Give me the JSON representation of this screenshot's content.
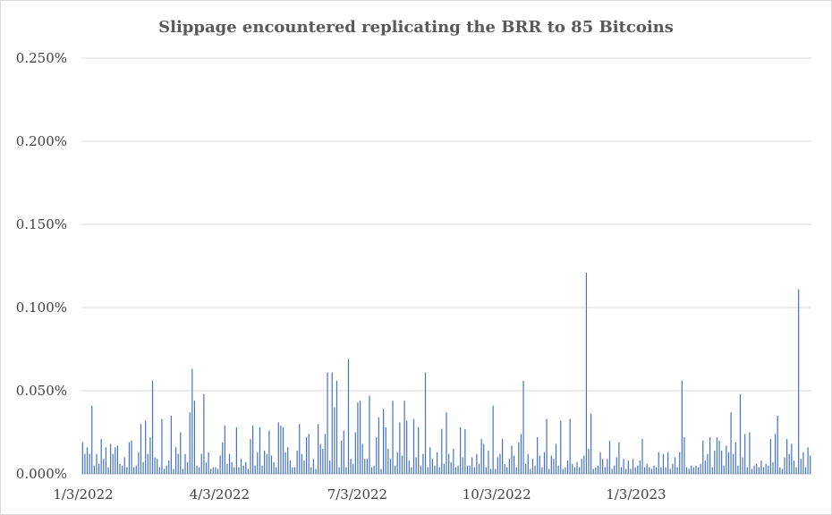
{
  "chart_data": {
    "type": "bar",
    "title": "Slippage encountered replicating the BRR to 85 Bitcoins",
    "xlabel": "",
    "ylabel": "",
    "ylim": [
      0,
      0.25
    ],
    "y_ticks": [
      "0.000%",
      "0.050%",
      "0.100%",
      "0.150%",
      "0.200%",
      "0.250%"
    ],
    "x_ticks": [
      "1/3/2022",
      "4/3/2022",
      "7/3/2022",
      "10/3/2022",
      "1/3/2023"
    ],
    "x_range": [
      "1/3/2022",
      "4/30/2023"
    ],
    "grid": true,
    "legend": "none",
    "color": "#4472c4",
    "series": [
      {
        "values": [
          0.019,
          0.012,
          0.016,
          0.012,
          0.041,
          0.005,
          0.012,
          0.006,
          0.021,
          0.009,
          0.016,
          0.004,
          0.018,
          0.012,
          0.016,
          0.017,
          0.006,
          0.005,
          0.01,
          0.004,
          0.019,
          0.02,
          0.004,
          0.005,
          0.013,
          0.03,
          0.007,
          0.032,
          0.012,
          0.022,
          0.056,
          0.01,
          0.009,
          0.004,
          0.033,
          0.003,
          0.005,
          0.008,
          0.035,
          0.003,
          0.016,
          0.012,
          0.025,
          0.003,
          0.012,
          0.007,
          0.037,
          0.063,
          0.044,
          0.005,
          0.004,
          0.012,
          0.048,
          0.007,
          0.013,
          0.003,
          0.004,
          0.004,
          0.003,
          0.011,
          0.019,
          0.029,
          0.006,
          0.012,
          0.007,
          0.004,
          0.028,
          0.004,
          0.009,
          0.005,
          0.007,
          0.003,
          0.021,
          0.029,
          0.005,
          0.013,
          0.028,
          0.005,
          0.014,
          0.012,
          0.026,
          0.011,
          0.007,
          0.004,
          0.031,
          0.029,
          0.028,
          0.013,
          0.016,
          0.008,
          0.004,
          0.004,
          0.014,
          0.03,
          0.012,
          0.008,
          0.022,
          0.024,
          0.004,
          0.009,
          0.003,
          0.03,
          0.018,
          0.015,
          0.024,
          0.061,
          0.008,
          0.061,
          0.04,
          0.056,
          0.004,
          0.02,
          0.026,
          0.004,
          0.069,
          0.009,
          0.006,
          0.025,
          0.043,
          0.044,
          0.018,
          0.009,
          0.009,
          0.047,
          0.004,
          0.005,
          0.022,
          0.034,
          0.003,
          0.039,
          0.028,
          0.015,
          0.009,
          0.044,
          0.005,
          0.013,
          0.031,
          0.011,
          0.044,
          0.032,
          0.008,
          0.004,
          0.033,
          0.01,
          0.028,
          0.005,
          0.012,
          0.061,
          0.004,
          0.016,
          0.009,
          0.005,
          0.013,
          0.004,
          0.027,
          0.006,
          0.037,
          0.012,
          0.007,
          0.015,
          0.004,
          0.005,
          0.028,
          0.01,
          0.027,
          0.005,
          0.005,
          0.01,
          0.004,
          0.012,
          0.006,
          0.021,
          0.018,
          0.004,
          0.014,
          0.003,
          0.041,
          0.003,
          0.01,
          0.012,
          0.021,
          0.006,
          0.004,
          0.009,
          0.017,
          0.011,
          0.004,
          0.019,
          0.024,
          0.056,
          0.006,
          0.012,
          0.003,
          0.009,
          0.005,
          0.022,
          0.011,
          0.004,
          0.013,
          0.033,
          0.003,
          0.011,
          0.009,
          0.018,
          0.005,
          0.032,
          0.003,
          0.004,
          0.008,
          0.033,
          0.006,
          0.004,
          0.007,
          0.004,
          0.009,
          0.011,
          0.121,
          0.015,
          0.036,
          0.003,
          0.004,
          0.005,
          0.013,
          0.009,
          0.004,
          0.009,
          0.02,
          0.003,
          0.005,
          0.01,
          0.019,
          0.004,
          0.009,
          0.003,
          0.008,
          0.003,
          0.009,
          0.004,
          0.005,
          0.008,
          0.021,
          0.004,
          0.006,
          0.004,
          0.003,
          0.005,
          0.004,
          0.013,
          0.004,
          0.012,
          0.004,
          0.013,
          0.003,
          0.006,
          0.01,
          0.004,
          0.013,
          0.056,
          0.022,
          0.004,
          0.003,
          0.005,
          0.004,
          0.005,
          0.004,
          0.006,
          0.02,
          0.008,
          0.012,
          0.022,
          0.004,
          0.014,
          0.022,
          0.02,
          0.014,
          0.005,
          0.017,
          0.013,
          0.037,
          0.012,
          0.019,
          0.005,
          0.048,
          0.01,
          0.024,
          0.004,
          0.025,
          0.003,
          0.005,
          0.006,
          0.004,
          0.008,
          0.004,
          0.006,
          0.005,
          0.021,
          0.007,
          0.024,
          0.035,
          0.004,
          0.003,
          0.01,
          0.021,
          0.012,
          0.018,
          0.008,
          0.004,
          0.111,
          0.009,
          0.013,
          0.004,
          0.016,
          0.011
        ]
      }
    ]
  }
}
